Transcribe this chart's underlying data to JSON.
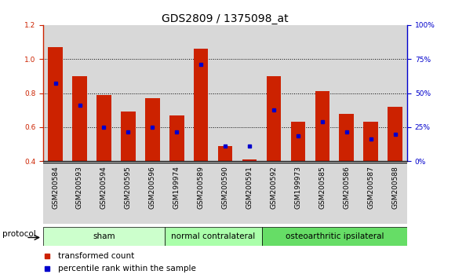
{
  "title": "GDS2809 / 1375098_at",
  "samples": [
    "GSM200584",
    "GSM200593",
    "GSM200594",
    "GSM200595",
    "GSM200596",
    "GSM199974",
    "GSM200589",
    "GSM200590",
    "GSM200591",
    "GSM200592",
    "GSM199973",
    "GSM200585",
    "GSM200586",
    "GSM200587",
    "GSM200588"
  ],
  "red_values": [
    1.07,
    0.9,
    0.79,
    0.69,
    0.77,
    0.67,
    1.06,
    0.49,
    0.41,
    0.9,
    0.63,
    0.81,
    0.68,
    0.63,
    0.72
  ],
  "blue_values": [
    0.86,
    0.73,
    0.6,
    0.57,
    0.6,
    0.57,
    0.97,
    0.49,
    0.49,
    0.7,
    0.55,
    0.63,
    0.57,
    0.53,
    0.56
  ],
  "ylim": [
    0.4,
    1.2
  ],
  "y2lim": [
    0,
    100
  ],
  "yticks": [
    0.4,
    0.6,
    0.8,
    1.0,
    1.2
  ],
  "y2ticks": [
    0,
    25,
    50,
    75,
    100
  ],
  "groups": [
    {
      "label": "sham",
      "start": 0,
      "end": 5,
      "color": "#ccffcc"
    },
    {
      "label": "normal contralateral",
      "start": 5,
      "end": 9,
      "color": "#aaffaa"
    },
    {
      "label": "osteoarthritic ipsilateral",
      "start": 9,
      "end": 15,
      "color": "#66dd66"
    }
  ],
  "red_color": "#cc2200",
  "blue_color": "#0000cc",
  "bar_width": 0.6,
  "legend_red": "transformed count",
  "legend_blue": "percentile rank within the sample",
  "protocol_label": "protocol",
  "title_fontsize": 10,
  "tick_fontsize": 6.5,
  "label_fontsize": 7.5,
  "col_bg_odd": "#d8d8d8",
  "col_bg_even": "#e8e8e8"
}
